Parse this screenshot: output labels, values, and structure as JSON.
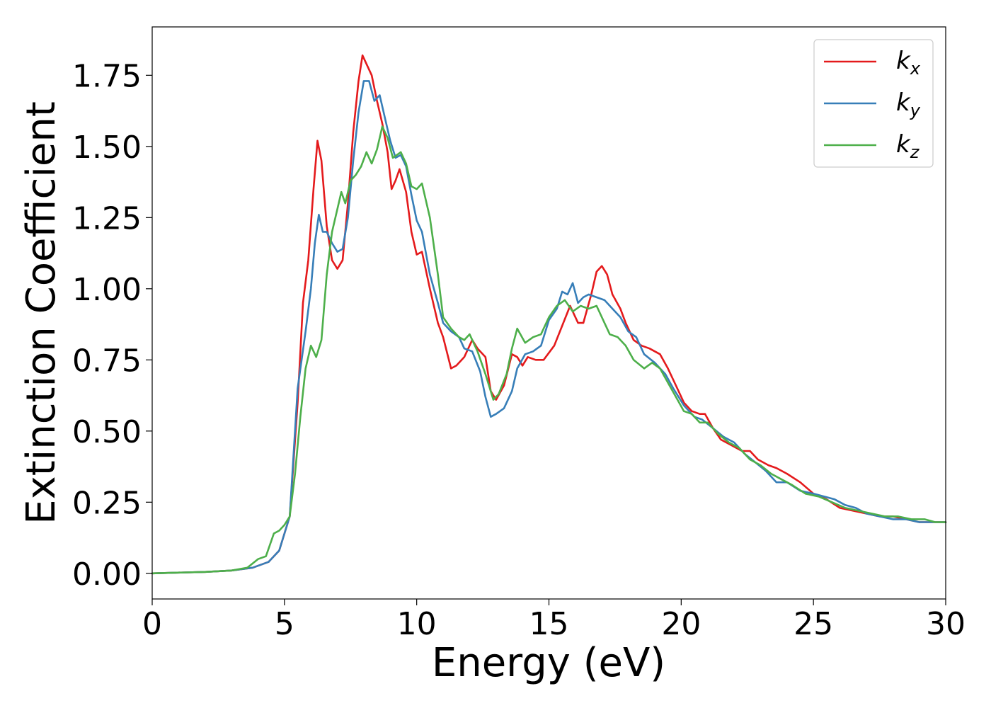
{
  "chart_data": {
    "type": "line",
    "title": "",
    "xlabel": "Energy (eV)",
    "ylabel": "Extinction Coefficient",
    "xlim": [
      0,
      30
    ],
    "ylim": [
      -0.09,
      1.92
    ],
    "xticks": [
      0,
      5,
      10,
      15,
      20,
      25,
      30
    ],
    "xtick_labels": [
      "0",
      "5",
      "10",
      "15",
      "20",
      "25",
      "30"
    ],
    "yticks": [
      0.0,
      0.25,
      0.5,
      0.75,
      1.0,
      1.25,
      1.5,
      1.75
    ],
    "ytick_labels": [
      "0.00",
      "0.25",
      "0.50",
      "0.75",
      "1.00",
      "1.25",
      "1.50",
      "1.75"
    ],
    "grid": false,
    "legend_position": "top-right",
    "series": [
      {
        "name": "k",
        "subscript": "x",
        "color": "#e41a1c",
        "points": [
          [
            0,
            0.0
          ],
          [
            2,
            0.005
          ],
          [
            3,
            0.01
          ],
          [
            3.8,
            0.02
          ],
          [
            4.4,
            0.04
          ],
          [
            4.8,
            0.08
          ],
          [
            5.2,
            0.2
          ],
          [
            5.5,
            0.6
          ],
          [
            5.7,
            0.95
          ],
          [
            5.9,
            1.1
          ],
          [
            6.1,
            1.35
          ],
          [
            6.25,
            1.52
          ],
          [
            6.4,
            1.45
          ],
          [
            6.6,
            1.22
          ],
          [
            6.8,
            1.1
          ],
          [
            7.0,
            1.07
          ],
          [
            7.2,
            1.1
          ],
          [
            7.4,
            1.3
          ],
          [
            7.6,
            1.55
          ],
          [
            7.8,
            1.73
          ],
          [
            7.95,
            1.82
          ],
          [
            8.1,
            1.79
          ],
          [
            8.3,
            1.75
          ],
          [
            8.5,
            1.66
          ],
          [
            8.7,
            1.58
          ],
          [
            8.9,
            1.48
          ],
          [
            9.05,
            1.35
          ],
          [
            9.2,
            1.38
          ],
          [
            9.35,
            1.42
          ],
          [
            9.6,
            1.34
          ],
          [
            9.8,
            1.2
          ],
          [
            10.0,
            1.12
          ],
          [
            10.2,
            1.13
          ],
          [
            10.5,
            1.0
          ],
          [
            10.8,
            0.88
          ],
          [
            11.0,
            0.83
          ],
          [
            11.3,
            0.72
          ],
          [
            11.5,
            0.73
          ],
          [
            11.8,
            0.76
          ],
          [
            12.1,
            0.82
          ],
          [
            12.3,
            0.79
          ],
          [
            12.6,
            0.76
          ],
          [
            12.8,
            0.64
          ],
          [
            13.0,
            0.61
          ],
          [
            13.3,
            0.66
          ],
          [
            13.6,
            0.77
          ],
          [
            13.8,
            0.76
          ],
          [
            14.0,
            0.73
          ],
          [
            14.2,
            0.76
          ],
          [
            14.5,
            0.75
          ],
          [
            14.8,
            0.75
          ],
          [
            15.2,
            0.8
          ],
          [
            15.5,
            0.87
          ],
          [
            15.8,
            0.94
          ],
          [
            16.1,
            0.88
          ],
          [
            16.3,
            0.88
          ],
          [
            16.6,
            0.98
          ],
          [
            16.8,
            1.06
          ],
          [
            17.0,
            1.08
          ],
          [
            17.2,
            1.05
          ],
          [
            17.4,
            0.98
          ],
          [
            17.7,
            0.93
          ],
          [
            17.9,
            0.88
          ],
          [
            18.2,
            0.82
          ],
          [
            18.5,
            0.8
          ],
          [
            18.8,
            0.79
          ],
          [
            19.2,
            0.77
          ],
          [
            19.5,
            0.72
          ],
          [
            19.8,
            0.66
          ],
          [
            20.1,
            0.6
          ],
          [
            20.4,
            0.57
          ],
          [
            20.7,
            0.56
          ],
          [
            20.9,
            0.56
          ],
          [
            21.2,
            0.51
          ],
          [
            21.5,
            0.47
          ],
          [
            21.9,
            0.45
          ],
          [
            22.3,
            0.43
          ],
          [
            22.6,
            0.43
          ],
          [
            22.9,
            0.4
          ],
          [
            23.3,
            0.38
          ],
          [
            23.6,
            0.37
          ],
          [
            24.0,
            0.35
          ],
          [
            24.5,
            0.32
          ],
          [
            25.0,
            0.28
          ],
          [
            25.5,
            0.26
          ],
          [
            26.0,
            0.23
          ],
          [
            26.5,
            0.22
          ],
          [
            27.0,
            0.21
          ],
          [
            27.5,
            0.2
          ],
          [
            28.0,
            0.2
          ],
          [
            28.5,
            0.19
          ],
          [
            29.0,
            0.18
          ],
          [
            29.5,
            0.18
          ],
          [
            30,
            0.18
          ]
        ]
      },
      {
        "name": "k",
        "subscript": "y",
        "color": "#377eb8",
        "points": [
          [
            0,
            0.0
          ],
          [
            2,
            0.005
          ],
          [
            3,
            0.01
          ],
          [
            3.8,
            0.02
          ],
          [
            4.4,
            0.04
          ],
          [
            4.8,
            0.08
          ],
          [
            5.2,
            0.2
          ],
          [
            5.5,
            0.65
          ],
          [
            5.8,
            0.85
          ],
          [
            6.0,
            1.0
          ],
          [
            6.15,
            1.16
          ],
          [
            6.3,
            1.26
          ],
          [
            6.45,
            1.2
          ],
          [
            6.6,
            1.2
          ],
          [
            6.8,
            1.16
          ],
          [
            7.0,
            1.13
          ],
          [
            7.2,
            1.14
          ],
          [
            7.4,
            1.25
          ],
          [
            7.6,
            1.45
          ],
          [
            7.8,
            1.62
          ],
          [
            8.0,
            1.73
          ],
          [
            8.2,
            1.73
          ],
          [
            8.4,
            1.66
          ],
          [
            8.6,
            1.68
          ],
          [
            8.8,
            1.6
          ],
          [
            9.0,
            1.52
          ],
          [
            9.2,
            1.46
          ],
          [
            9.4,
            1.47
          ],
          [
            9.6,
            1.43
          ],
          [
            9.8,
            1.33
          ],
          [
            10.0,
            1.24
          ],
          [
            10.2,
            1.2
          ],
          [
            10.5,
            1.05
          ],
          [
            10.8,
            0.95
          ],
          [
            11.0,
            0.88
          ],
          [
            11.3,
            0.85
          ],
          [
            11.6,
            0.83
          ],
          [
            11.8,
            0.79
          ],
          [
            12.1,
            0.78
          ],
          [
            12.4,
            0.71
          ],
          [
            12.6,
            0.62
          ],
          [
            12.8,
            0.55
          ],
          [
            13.0,
            0.56
          ],
          [
            13.3,
            0.58
          ],
          [
            13.6,
            0.64
          ],
          [
            13.8,
            0.72
          ],
          [
            14.1,
            0.77
          ],
          [
            14.4,
            0.78
          ],
          [
            14.7,
            0.8
          ],
          [
            15.0,
            0.89
          ],
          [
            15.3,
            0.93
          ],
          [
            15.5,
            0.99
          ],
          [
            15.7,
            0.98
          ],
          [
            15.9,
            1.02
          ],
          [
            16.1,
            0.95
          ],
          [
            16.3,
            0.97
          ],
          [
            16.5,
            0.98
          ],
          [
            16.8,
            0.97
          ],
          [
            17.1,
            0.96
          ],
          [
            17.4,
            0.93
          ],
          [
            17.7,
            0.9
          ],
          [
            18.0,
            0.85
          ],
          [
            18.3,
            0.83
          ],
          [
            18.6,
            0.77
          ],
          [
            19.0,
            0.74
          ],
          [
            19.4,
            0.7
          ],
          [
            19.7,
            0.65
          ],
          [
            20.1,
            0.59
          ],
          [
            20.5,
            0.55
          ],
          [
            20.8,
            0.54
          ],
          [
            21.2,
            0.51
          ],
          [
            21.6,
            0.48
          ],
          [
            22.0,
            0.46
          ],
          [
            22.4,
            0.42
          ],
          [
            22.8,
            0.39
          ],
          [
            23.2,
            0.36
          ],
          [
            23.6,
            0.32
          ],
          [
            24.0,
            0.32
          ],
          [
            24.5,
            0.29
          ],
          [
            25.0,
            0.28
          ],
          [
            25.4,
            0.27
          ],
          [
            25.8,
            0.26
          ],
          [
            26.2,
            0.24
          ],
          [
            26.6,
            0.23
          ],
          [
            27.0,
            0.21
          ],
          [
            27.5,
            0.2
          ],
          [
            28.0,
            0.19
          ],
          [
            28.5,
            0.19
          ],
          [
            29.0,
            0.18
          ],
          [
            29.5,
            0.18
          ],
          [
            30,
            0.18
          ]
        ]
      },
      {
        "name": "k",
        "subscript": "z",
        "color": "#4daf4a",
        "points": [
          [
            0,
            0.0
          ],
          [
            2,
            0.005
          ],
          [
            3,
            0.01
          ],
          [
            3.6,
            0.02
          ],
          [
            4.0,
            0.05
          ],
          [
            4.3,
            0.06
          ],
          [
            4.6,
            0.14
          ],
          [
            4.8,
            0.15
          ],
          [
            5.0,
            0.17
          ],
          [
            5.2,
            0.2
          ],
          [
            5.4,
            0.35
          ],
          [
            5.6,
            0.55
          ],
          [
            5.8,
            0.72
          ],
          [
            6.0,
            0.8
          ],
          [
            6.2,
            0.76
          ],
          [
            6.4,
            0.82
          ],
          [
            6.6,
            1.05
          ],
          [
            6.8,
            1.2
          ],
          [
            7.0,
            1.28
          ],
          [
            7.15,
            1.34
          ],
          [
            7.3,
            1.3
          ],
          [
            7.5,
            1.38
          ],
          [
            7.7,
            1.4
          ],
          [
            7.9,
            1.43
          ],
          [
            8.1,
            1.48
          ],
          [
            8.3,
            1.44
          ],
          [
            8.5,
            1.49
          ],
          [
            8.7,
            1.57
          ],
          [
            8.9,
            1.53
          ],
          [
            9.1,
            1.46
          ],
          [
            9.4,
            1.48
          ],
          [
            9.6,
            1.44
          ],
          [
            9.8,
            1.36
          ],
          [
            10.0,
            1.35
          ],
          [
            10.2,
            1.37
          ],
          [
            10.5,
            1.25
          ],
          [
            10.8,
            1.05
          ],
          [
            11.0,
            0.9
          ],
          [
            11.3,
            0.86
          ],
          [
            11.6,
            0.83
          ],
          [
            11.8,
            0.82
          ],
          [
            12.0,
            0.84
          ],
          [
            12.3,
            0.78
          ],
          [
            12.6,
            0.7
          ],
          [
            12.9,
            0.61
          ],
          [
            13.1,
            0.63
          ],
          [
            13.4,
            0.7
          ],
          [
            13.6,
            0.79
          ],
          [
            13.8,
            0.86
          ],
          [
            14.1,
            0.81
          ],
          [
            14.4,
            0.83
          ],
          [
            14.7,
            0.84
          ],
          [
            15.0,
            0.9
          ],
          [
            15.3,
            0.94
          ],
          [
            15.6,
            0.96
          ],
          [
            15.9,
            0.92
          ],
          [
            16.2,
            0.94
          ],
          [
            16.5,
            0.93
          ],
          [
            16.8,
            0.94
          ],
          [
            17.0,
            0.9
          ],
          [
            17.3,
            0.84
          ],
          [
            17.6,
            0.83
          ],
          [
            17.9,
            0.8
          ],
          [
            18.2,
            0.75
          ],
          [
            18.6,
            0.72
          ],
          [
            18.9,
            0.74
          ],
          [
            19.2,
            0.72
          ],
          [
            19.5,
            0.67
          ],
          [
            19.8,
            0.62
          ],
          [
            20.1,
            0.57
          ],
          [
            20.4,
            0.56
          ],
          [
            20.7,
            0.53
          ],
          [
            21.0,
            0.53
          ],
          [
            21.4,
            0.49
          ],
          [
            21.8,
            0.46
          ],
          [
            22.2,
            0.44
          ],
          [
            22.6,
            0.4
          ],
          [
            23.0,
            0.38
          ],
          [
            23.4,
            0.35
          ],
          [
            23.8,
            0.33
          ],
          [
            24.2,
            0.31
          ],
          [
            24.7,
            0.28
          ],
          [
            25.2,
            0.27
          ],
          [
            25.7,
            0.25
          ],
          [
            26.2,
            0.23
          ],
          [
            26.7,
            0.22
          ],
          [
            27.2,
            0.21
          ],
          [
            27.7,
            0.2
          ],
          [
            28.2,
            0.2
          ],
          [
            28.7,
            0.19
          ],
          [
            29.2,
            0.19
          ],
          [
            29.6,
            0.18
          ],
          [
            30,
            0.18
          ]
        ]
      }
    ]
  }
}
